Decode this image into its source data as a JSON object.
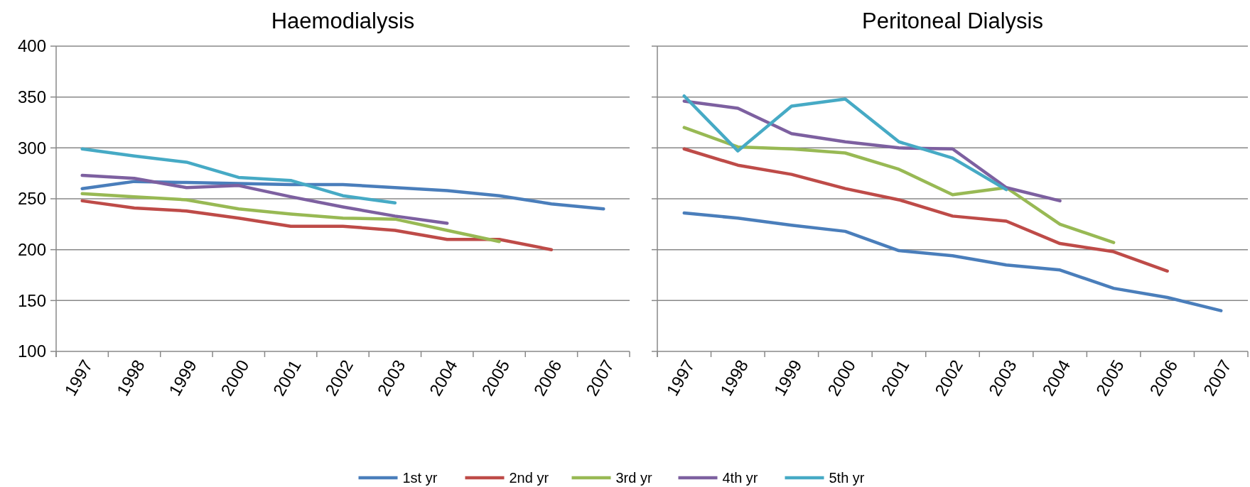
{
  "chart_data": [
    {
      "type": "line",
      "title": "Haemodialysis",
      "categories": [
        "1997",
        "1998",
        "1999",
        "2000",
        "2001",
        "2002",
        "2003",
        "2004",
        "2005",
        "2006",
        "2007"
      ],
      "ylim": [
        100,
        400
      ],
      "yticks": [
        100,
        150,
        200,
        250,
        300,
        350,
        400
      ],
      "grid": "y",
      "legend": "bottom",
      "series": [
        {
          "name": "1st yr",
          "color": "#4a7ebb",
          "values": [
            260,
            267,
            266,
            265,
            264,
            264,
            261,
            258,
            253,
            245,
            240
          ]
        },
        {
          "name": "2nd yr",
          "color": "#be4b48",
          "values": [
            248,
            241,
            238,
            231,
            223,
            223,
            219,
            210,
            210,
            200,
            null
          ]
        },
        {
          "name": "3rd yr",
          "color": "#98b954",
          "values": [
            255,
            252,
            249,
            240,
            235,
            231,
            230,
            219,
            208,
            null,
            null
          ]
        },
        {
          "name": "4th yr",
          "color": "#7d60a0",
          "values": [
            273,
            270,
            261,
            263,
            252,
            242,
            233,
            226,
            null,
            null,
            null
          ]
        },
        {
          "name": "5th yr",
          "color": "#46aac5",
          "values": [
            299,
            292,
            286,
            271,
            268,
            253,
            246,
            null,
            null,
            null,
            null
          ]
        }
      ]
    },
    {
      "type": "line",
      "title": "Peritoneal Dialysis",
      "categories": [
        "1997",
        "1998",
        "1999",
        "2000",
        "2001",
        "2002",
        "2003",
        "2004",
        "2005",
        "2006",
        "2007"
      ],
      "ylim": [
        100,
        400
      ],
      "yticks": [
        100,
        150,
        200,
        250,
        300,
        350,
        400
      ],
      "grid": "y",
      "tick_labels": "x",
      "series": [
        {
          "color": "#4a7ebb",
          "values": [
            236,
            231,
            224,
            218,
            199,
            194,
            185,
            180,
            162,
            153,
            140
          ]
        },
        {
          "color": "#be4b48",
          "values": [
            299,
            283,
            274,
            260,
            249,
            233,
            228,
            206,
            198,
            179,
            null
          ]
        },
        {
          "color": "#98b954",
          "values": [
            320,
            301,
            299,
            295,
            279,
            254,
            261,
            225,
            207,
            null,
            null
          ]
        },
        {
          "color": "#7d60a0",
          "values": [
            346,
            339,
            314,
            306,
            300,
            299,
            261,
            248,
            null,
            null,
            null
          ]
        },
        {
          "color": "#46aac5",
          "values": [
            351,
            297,
            341,
            348,
            306,
            290,
            259,
            null,
            null,
            null,
            null
          ]
        }
      ]
    }
  ]
}
